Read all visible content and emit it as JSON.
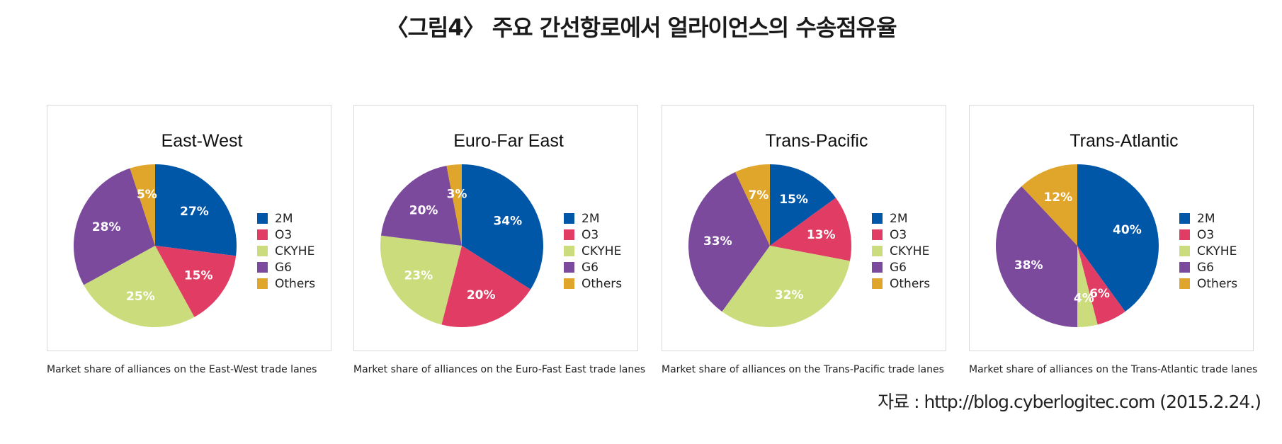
{
  "title": "〈그림4〉 주요 간선항로에서 얼라이언스의 수송점유율",
  "source": "자료 : http://blog.cyberlogitec.com (2015.2.24.)",
  "colors": {
    "2M": "#0057a8",
    "O3": "#e03c64",
    "CKYHE": "#cbdc7c",
    "G6": "#7c4a9c",
    "Others": "#e0a62c"
  },
  "chart_data": [
    {
      "type": "pie",
      "title": "East-West",
      "caption": "Market share of alliances on the East-West trade lanes",
      "legend": "right",
      "slices": [
        {
          "name": "2M",
          "value": 27,
          "label": "27%"
        },
        {
          "name": "O3",
          "value": 15,
          "label": "15%"
        },
        {
          "name": "CKYHE",
          "value": 25,
          "label": "25%"
        },
        {
          "name": "G6",
          "value": 28,
          "label": "28%"
        },
        {
          "name": "Others",
          "value": 5,
          "label": "5%"
        }
      ]
    },
    {
      "type": "pie",
      "title": "Euro-Far East",
      "caption": "Market share of alliances on the Euro-Fast East trade lanes",
      "legend": "right",
      "slices": [
        {
          "name": "2M",
          "value": 34,
          "label": "34%"
        },
        {
          "name": "O3",
          "value": 20,
          "label": "20%"
        },
        {
          "name": "CKYHE",
          "value": 23,
          "label": "23%"
        },
        {
          "name": "G6",
          "value": 20,
          "label": "20%"
        },
        {
          "name": "Others",
          "value": 3,
          "label": "3%"
        }
      ]
    },
    {
      "type": "pie",
      "title": "Trans-Pacific",
      "caption": "Market share of alliances on the Trans-Pacific trade lanes",
      "legend": "right",
      "slices": [
        {
          "name": "2M",
          "value": 15,
          "label": "15%"
        },
        {
          "name": "O3",
          "value": 13,
          "label": "13%"
        },
        {
          "name": "CKYHE",
          "value": 32,
          "label": "32%"
        },
        {
          "name": "G6",
          "value": 33,
          "label": "33%"
        },
        {
          "name": "Others",
          "value": 7,
          "label": "7%"
        }
      ]
    },
    {
      "type": "pie",
      "title": "Trans-Atlantic",
      "caption": "Market share of alliances on the Trans-Atlantic trade lanes",
      "legend": "right",
      "slices": [
        {
          "name": "2M",
          "value": 40,
          "label": "40%"
        },
        {
          "name": "O3",
          "value": 6,
          "label": "6%"
        },
        {
          "name": "CKYHE",
          "value": 4,
          "label": "4%"
        },
        {
          "name": "G6",
          "value": 38,
          "label": "38%"
        },
        {
          "name": "Others",
          "value": 12,
          "label": "12%"
        }
      ]
    }
  ]
}
